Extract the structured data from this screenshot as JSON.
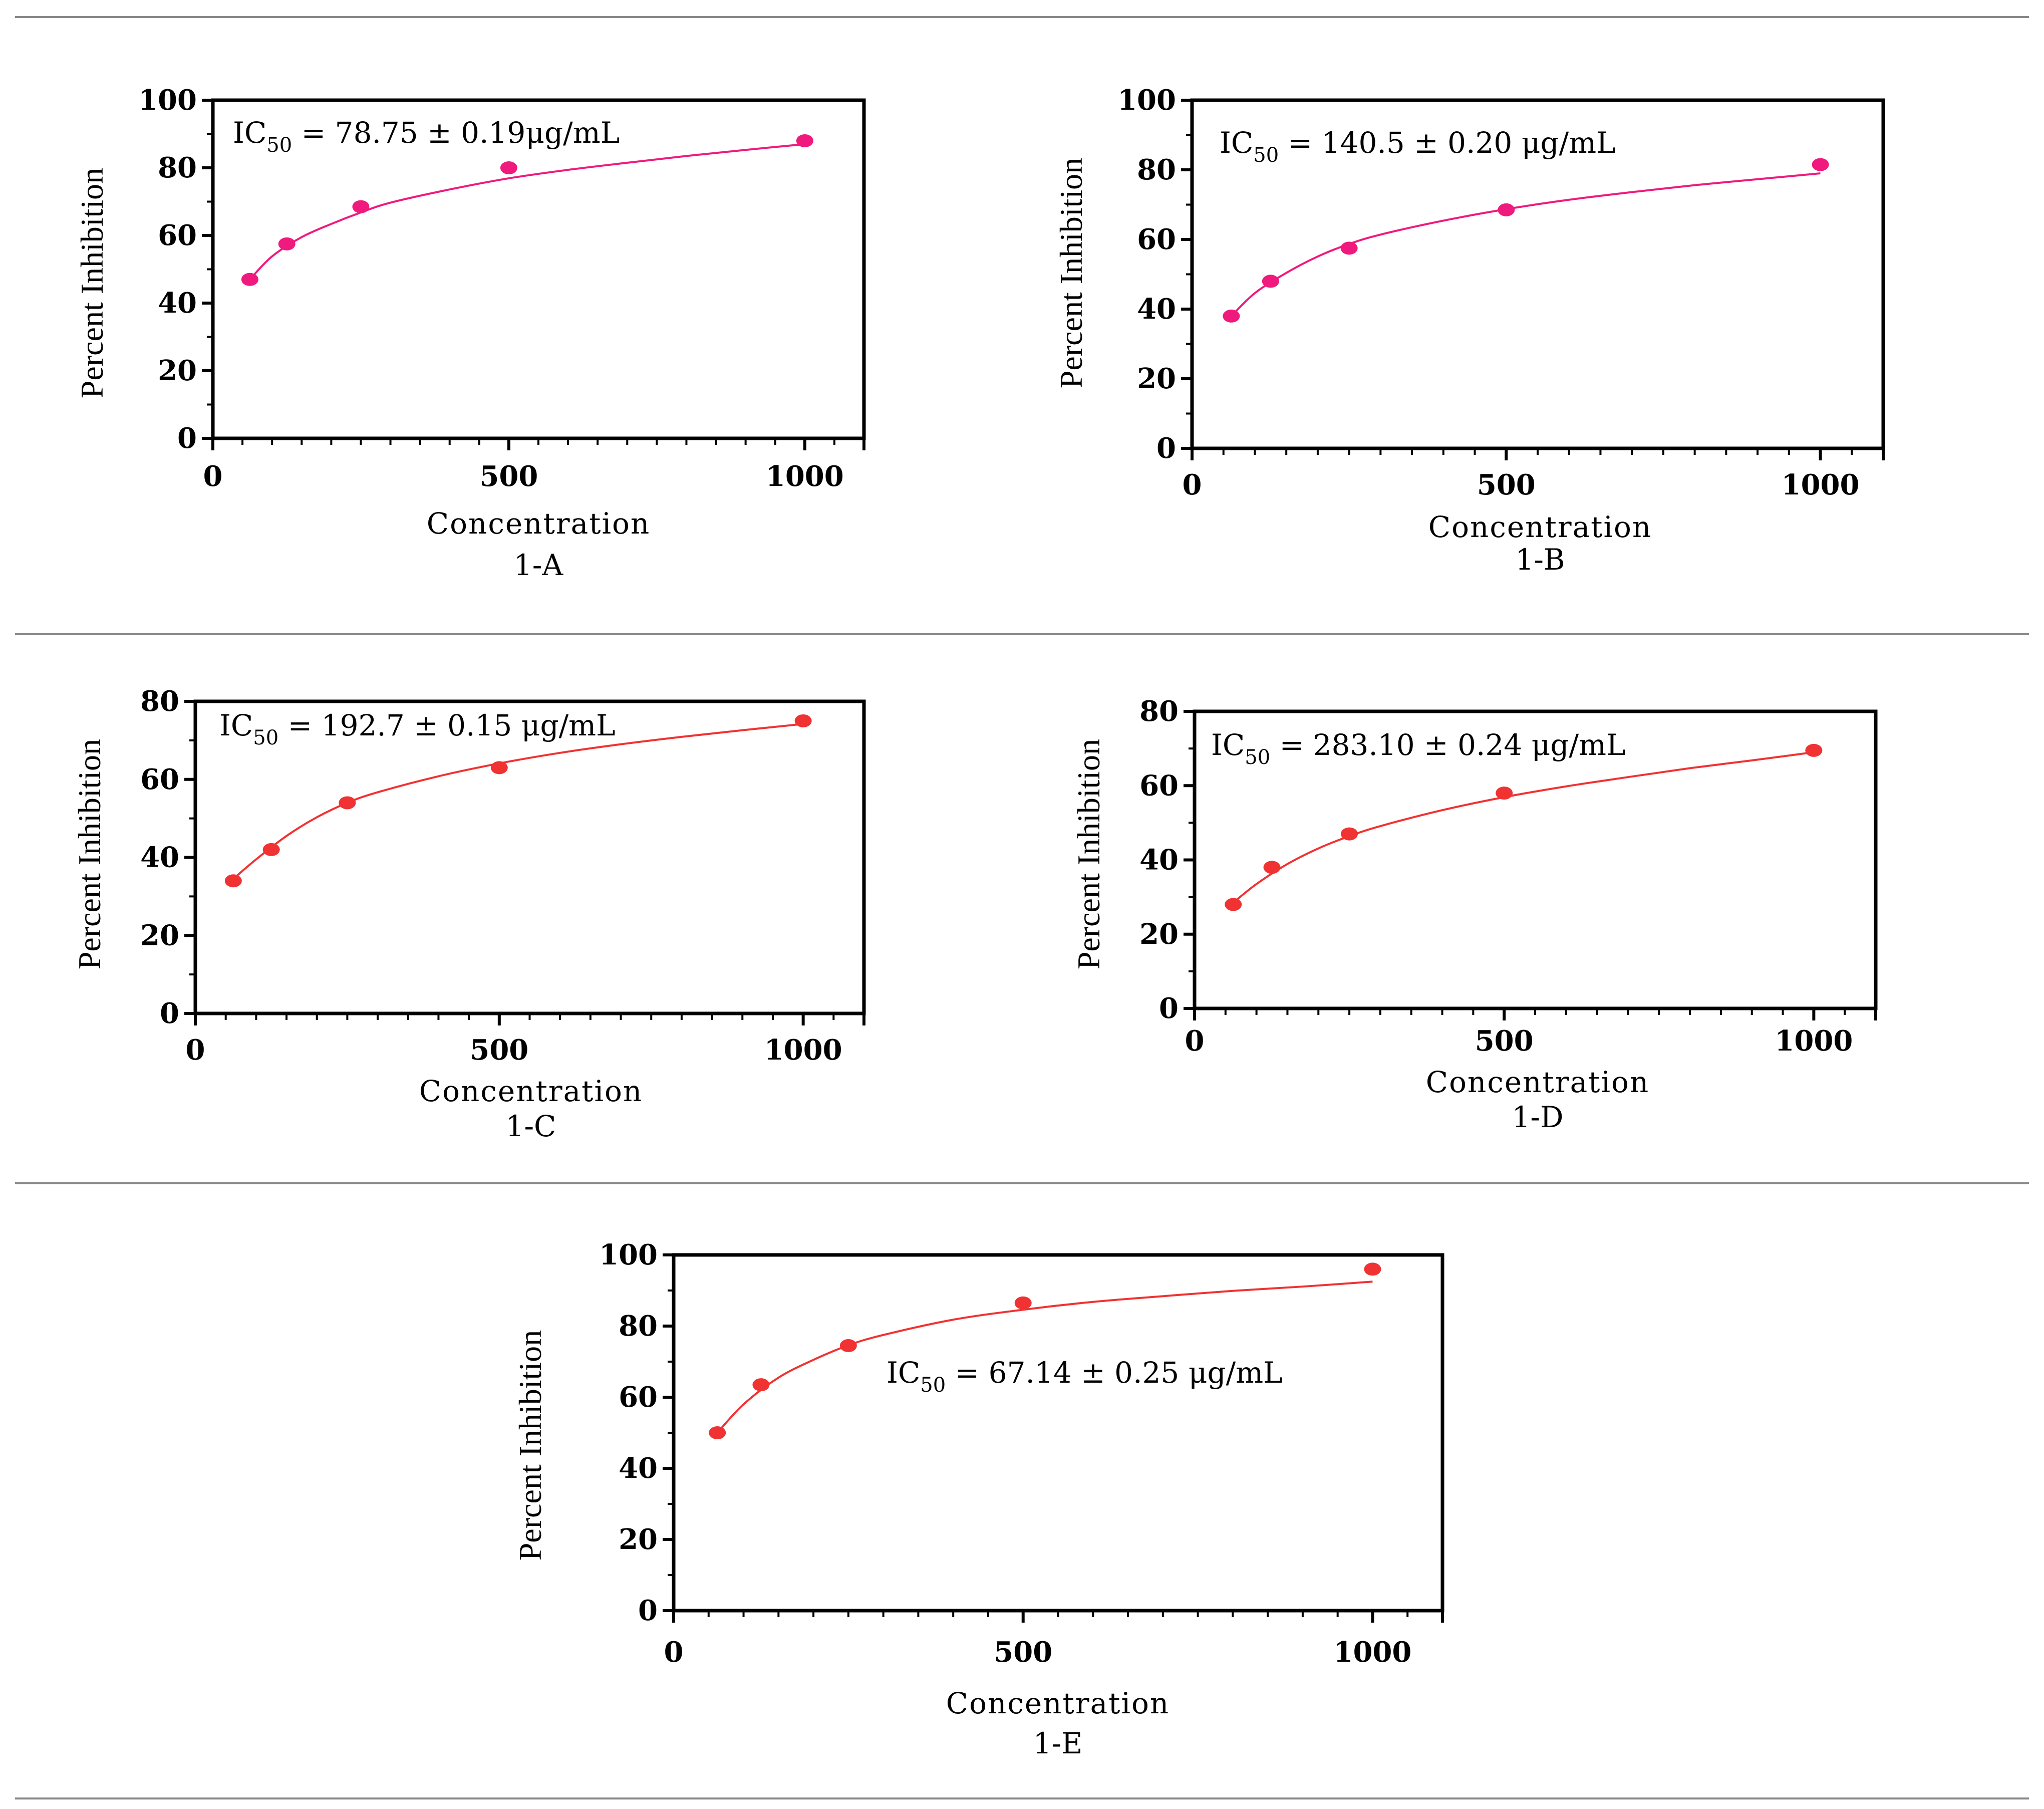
{
  "chart_data": [
    {
      "id": "1-A",
      "type": "scatter",
      "panel_label": "1-A",
      "xlabel": "Concentration",
      "ylabel": "Percent Inhibition",
      "xlim": [
        0,
        1100
      ],
      "ylim": [
        0,
        100
      ],
      "x_ticks": [
        0,
        500,
        1000
      ],
      "y_ticks": [
        0,
        20,
        40,
        60,
        80,
        100
      ],
      "annotation": {
        "prefix": "IC",
        "sub": "50",
        "rest": " = 78.75 ± 0.19μg/mL"
      },
      "color": "#f0197d",
      "points": {
        "x": [
          62.5,
          125,
          250,
          500,
          1000
        ],
        "y": [
          47,
          57.5,
          68.5,
          80,
          88
        ]
      },
      "curve": {
        "x": [
          62.5,
          100,
          150,
          200,
          250,
          300,
          400,
          500,
          600,
          700,
          800,
          900,
          1000
        ],
        "y": [
          47,
          53.8,
          59.5,
          63.4,
          66.8,
          69.7,
          73.6,
          76.9,
          79.4,
          81.5,
          83.5,
          85.3,
          87
        ]
      }
    },
    {
      "id": "1-B",
      "type": "scatter",
      "panel_label": "1-B",
      "xlabel": "Concentration",
      "ylabel": "Percent Inhibition",
      "xlim": [
        0,
        1100
      ],
      "ylim": [
        0,
        100
      ],
      "x_ticks": [
        0,
        500,
        1000
      ],
      "y_ticks": [
        0,
        20,
        40,
        60,
        80,
        100
      ],
      "annotation": {
        "prefix": "IC",
        "sub": "50",
        "rest": " = 140.5 ± 0.20 μg/mL"
      },
      "color": "#f0197d",
      "points": {
        "x": [
          62.5,
          125,
          250,
          500,
          1000
        ],
        "y": [
          38,
          48,
          57.5,
          68.5,
          81.5
        ]
      },
      "curve": {
        "x": [
          62.5,
          100,
          150,
          200,
          250,
          300,
          400,
          500,
          600,
          700,
          800,
          900,
          1000
        ],
        "y": [
          38,
          44.6,
          50.4,
          55.1,
          58.7,
          61.4,
          65.4,
          68.7,
          71.4,
          73.6,
          75.6,
          77.3,
          79
        ]
      }
    },
    {
      "id": "1-C",
      "type": "scatter",
      "panel_label": "1-C",
      "xlabel": "Concentration",
      "ylabel": "Percent Inhibition",
      "xlim": [
        0,
        1100
      ],
      "ylim": [
        0,
        80
      ],
      "x_ticks": [
        0,
        500,
        1000
      ],
      "y_ticks": [
        0,
        20,
        40,
        60,
        80
      ],
      "annotation": {
        "prefix": "IC",
        "sub": "50",
        "rest": " = 192.7 ± 0.15 μg/mL"
      },
      "color": "#f03232",
      "points": {
        "x": [
          62.5,
          125,
          250,
          500,
          1000
        ],
        "y": [
          34,
          42,
          54,
          63,
          75
        ]
      },
      "curve": {
        "x": [
          62.5,
          100,
          150,
          200,
          250,
          300,
          400,
          500,
          600,
          700,
          800,
          900,
          1000
        ],
        "y": [
          34.5,
          39.5,
          45.5,
          50.3,
          54,
          56.7,
          60.8,
          64.1,
          66.8,
          69,
          70.9,
          72.6,
          74.2
        ]
      }
    },
    {
      "id": "1-D",
      "type": "scatter",
      "panel_label": "1-D",
      "xlabel": "Concentration",
      "ylabel": "Percent Inhibition",
      "xlim": [
        0,
        1100
      ],
      "ylim": [
        0,
        80
      ],
      "x_ticks": [
        0,
        500,
        1000
      ],
      "y_ticks": [
        0,
        20,
        40,
        60,
        80
      ],
      "annotation": {
        "prefix": "IC",
        "sub": "50",
        "rest": " = 283.10 ± 0.24 μg/mL"
      },
      "color": "#f03232",
      "points": {
        "x": [
          62.5,
          125,
          250,
          500,
          1000
        ],
        "y": [
          28,
          38,
          47,
          58,
          69.5
        ]
      },
      "curve": {
        "x": [
          62.5,
          100,
          150,
          200,
          250,
          300,
          400,
          500,
          600,
          700,
          800,
          900,
          1000
        ],
        "y": [
          28.5,
          33.5,
          38.9,
          43.1,
          46.4,
          49.1,
          53.4,
          56.9,
          59.8,
          62.3,
          64.7,
          66.8,
          69
        ]
      }
    },
    {
      "id": "1-E",
      "type": "scatter",
      "panel_label": "1-E",
      "xlabel": "Concentration",
      "ylabel": "Percent Inhibition",
      "xlim": [
        0,
        1100
      ],
      "ylim": [
        0,
        100
      ],
      "x_ticks": [
        0,
        500,
        1000
      ],
      "y_ticks": [
        0,
        20,
        40,
        60,
        80,
        100
      ],
      "annotation": {
        "prefix": "IC",
        "sub": "50",
        "rest": " = 67.14 ± 0.25 μg/mL"
      },
      "color": "#f03232",
      "points": {
        "x": [
          62.5,
          125,
          250,
          500,
          1000
        ],
        "y": [
          50,
          63.5,
          74.5,
          86.5,
          96
        ]
      },
      "curve": {
        "x": [
          62.5,
          100,
          150,
          200,
          250,
          300,
          400,
          500,
          600,
          700,
          800,
          900,
          1000
        ],
        "y": [
          50,
          58,
          65.5,
          70.5,
          74.6,
          77.5,
          81.8,
          84.6,
          86.8,
          88.4,
          89.9,
          91.1,
          92.5
        ]
      }
    }
  ]
}
